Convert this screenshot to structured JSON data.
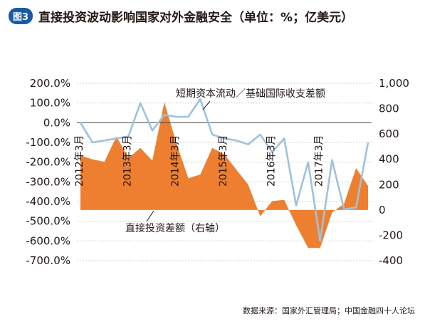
{
  "figure": {
    "badge": "图3"
  },
  "chart_data": {
    "type": "line+area",
    "title": "直接投资波动影响国家对外金融安全（单位：%；亿美元）",
    "left_axis": {
      "ticks": [
        "200.0%",
        "100.0%",
        "0.0%",
        "-100.0%",
        "-200.0%",
        "-300.0%",
        "-400.0%",
        "-500.0%",
        "-600.0%",
        "-700.0%"
      ],
      "min": -700,
      "max": 200
    },
    "right_axis": {
      "ticks": [
        "1,000",
        "800",
        "600",
        "400",
        "200",
        "0",
        "-200",
        "-400"
      ],
      "min": -400,
      "max": 1000
    },
    "x_labels": [
      "2012年3月",
      "2013年3月",
      "2014年3月",
      "2015年3月",
      "2016年3月",
      "2017年3月"
    ],
    "x_label_index": [
      0,
      4,
      8,
      12,
      16,
      20
    ],
    "series": [
      {
        "name": "短期资本流动／基础国际收支差额",
        "type": "line",
        "axis": "left",
        "color": "#9fc2dc",
        "values": [
          0,
          -100,
          -90,
          -80,
          -70,
          100,
          -40,
          40,
          30,
          30,
          120,
          -60,
          -80,
          -90,
          -110,
          -60,
          -150,
          -80,
          -420,
          -200,
          -600,
          -190,
          -440,
          -430,
          -100
        ]
      },
      {
        "name": "直接投资差额（右轴）",
        "type": "area",
        "axis": "right",
        "color": "#ef7f30",
        "values": [
          430,
          400,
          380,
          580,
          410,
          490,
          390,
          850,
          530,
          250,
          280,
          490,
          440,
          320,
          200,
          -50,
          70,
          80,
          -120,
          -300,
          -300,
          -20,
          50,
          330,
          190
        ]
      }
    ],
    "annotations": [
      "短期资本流动／基础国际收支差额",
      "直接投资差额（右轴）"
    ],
    "source": "数据来源：国家外汇管理局；中国金融四十人论坛",
    "grid": "horizontal dashed"
  }
}
